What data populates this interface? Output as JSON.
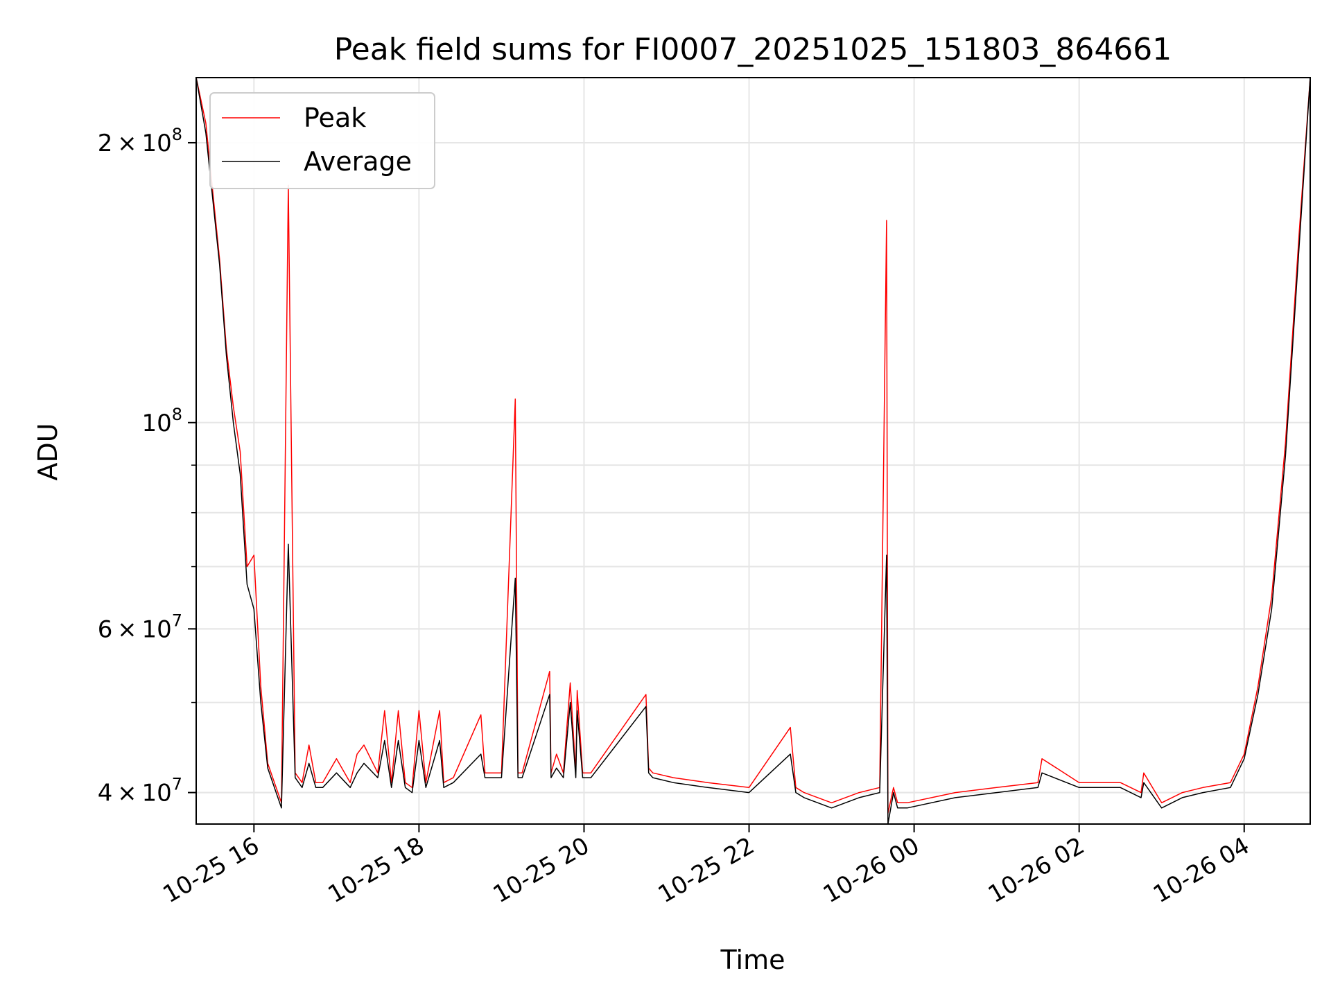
{
  "chart_data": {
    "type": "line",
    "title": "Peak field sums for FI0007_20251025_151803_864661",
    "xlabel": "Time",
    "ylabel": "ADU",
    "yscale": "log",
    "ylim": [
      37000000,
      235000000
    ],
    "xlim": [
      "2025-10-25 15:18",
      "2025-10-26 04:48"
    ],
    "grid": true,
    "legend": "top-left",
    "x_ticks": [
      "10-25 16",
      "10-25 18",
      "10-25 20",
      "10-25 22",
      "10-26 00",
      "10-26 02",
      "10-26 04"
    ],
    "y_ticks": [
      {
        "value": 40000000,
        "mant": "4",
        "exp": "7"
      },
      {
        "value": 60000000,
        "mant": "6",
        "exp": "7"
      },
      {
        "value": 100000000,
        "mant": "",
        "exp": "8"
      },
      {
        "value": 200000000,
        "mant": "2",
        "exp": "8"
      }
    ],
    "series": [
      {
        "name": "Peak",
        "color": "#ff0000",
        "x": [
          "2025-10-25 15:18",
          "2025-10-25 15:25",
          "2025-10-25 15:35",
          "2025-10-25 15:40",
          "2025-10-25 15:45",
          "2025-10-25 15:50",
          "2025-10-25 15:55",
          "2025-10-25 16:00",
          "2025-10-25 16:05",
          "2025-10-25 16:10",
          "2025-10-25 16:20",
          "2025-10-25 16:25",
          "2025-10-25 16:30",
          "2025-10-25 16:35",
          "2025-10-25 16:40",
          "2025-10-25 16:45",
          "2025-10-25 16:50",
          "2025-10-25 17:00",
          "2025-10-25 17:10",
          "2025-10-25 17:15",
          "2025-10-25 17:20",
          "2025-10-25 17:30",
          "2025-10-25 17:35",
          "2025-10-25 17:40",
          "2025-10-25 17:45",
          "2025-10-25 17:50",
          "2025-10-25 17:55",
          "2025-10-25 18:00",
          "2025-10-25 18:05",
          "2025-10-25 18:15",
          "2025-10-25 18:18",
          "2025-10-25 18:25",
          "2025-10-25 18:45",
          "2025-10-25 18:48",
          "2025-10-25 19:00",
          "2025-10-25 19:10",
          "2025-10-25 19:12",
          "2025-10-25 19:15",
          "2025-10-25 19:35",
          "2025-10-25 19:36",
          "2025-10-25 19:40",
          "2025-10-25 19:45",
          "2025-10-25 19:50",
          "2025-10-25 19:54",
          "2025-10-25 19:55",
          "2025-10-25 19:59",
          "2025-10-25 20:05",
          "2025-10-25 20:45",
          "2025-10-25 20:47",
          "2025-10-25 20:50",
          "2025-10-25 21:05",
          "2025-10-25 21:30",
          "2025-10-25 22:00",
          "2025-10-25 22:30",
          "2025-10-25 22:34",
          "2025-10-25 22:40",
          "2025-10-25 23:00",
          "2025-10-25 23:20",
          "2025-10-25 23:35",
          "2025-10-25 23:40",
          "2025-10-25 23:41",
          "2025-10-25 23:45",
          "2025-10-25 23:48",
          "2025-10-25 23:55",
          "2025-10-26 00:30",
          "2025-10-26 01:00",
          "2025-10-26 01:30",
          "2025-10-26 01:33",
          "2025-10-26 02:00",
          "2025-10-26 02:30",
          "2025-10-26 02:45",
          "2025-10-26 02:47",
          "2025-10-26 03:00",
          "2025-10-26 03:15",
          "2025-10-26 03:30",
          "2025-10-26 03:50",
          "2025-10-26 04:00",
          "2025-10-26 04:10",
          "2025-10-26 04:20",
          "2025-10-26 04:30",
          "2025-10-26 04:40",
          "2025-10-26 04:48"
        ],
        "y": [
          235000000,
          210000000,
          150000000,
          120000000,
          104000000,
          93000000,
          70000000,
          72000000,
          52000000,
          43000000,
          39000000,
          180000000,
          42000000,
          41000000,
          45000000,
          41000000,
          41000000,
          43500000,
          41000000,
          44000000,
          45000000,
          42000000,
          49000000,
          41000000,
          49000000,
          41000000,
          40500000,
          49000000,
          41000000,
          49000000,
          41000000,
          41500000,
          48500000,
          42000000,
          42000000,
          106000000,
          42000000,
          42000000,
          54000000,
          42000000,
          44000000,
          42000000,
          52500000,
          42000000,
          51500000,
          42000000,
          42000000,
          51000000,
          42500000,
          42000000,
          41500000,
          41000000,
          40500000,
          47000000,
          40500000,
          40000000,
          39000000,
          40000000,
          40500000,
          165000000,
          38000000,
          40500000,
          39000000,
          39000000,
          40000000,
          40500000,
          41000000,
          43500000,
          41000000,
          41000000,
          40000000,
          42000000,
          39000000,
          40000000,
          40500000,
          41000000,
          44000000,
          52000000,
          65000000,
          95000000,
          160000000,
          235000000
        ]
      },
      {
        "name": "Average",
        "color": "#000000",
        "x": [
          "2025-10-25 15:18",
          "2025-10-25 15:25",
          "2025-10-25 15:35",
          "2025-10-25 15:40",
          "2025-10-25 15:45",
          "2025-10-25 15:50",
          "2025-10-25 15:55",
          "2025-10-25 16:00",
          "2025-10-25 16:05",
          "2025-10-25 16:10",
          "2025-10-25 16:20",
          "2025-10-25 16:25",
          "2025-10-25 16:30",
          "2025-10-25 16:35",
          "2025-10-25 16:40",
          "2025-10-25 16:45",
          "2025-10-25 16:50",
          "2025-10-25 17:00",
          "2025-10-25 17:10",
          "2025-10-25 17:15",
          "2025-10-25 17:20",
          "2025-10-25 17:30",
          "2025-10-25 17:35",
          "2025-10-25 17:40",
          "2025-10-25 17:45",
          "2025-10-25 17:50",
          "2025-10-25 17:55",
          "2025-10-25 18:00",
          "2025-10-25 18:05",
          "2025-10-25 18:15",
          "2025-10-25 18:18",
          "2025-10-25 18:25",
          "2025-10-25 18:45",
          "2025-10-25 18:48",
          "2025-10-25 19:00",
          "2025-10-25 19:10",
          "2025-10-25 19:12",
          "2025-10-25 19:15",
          "2025-10-25 19:35",
          "2025-10-25 19:36",
          "2025-10-25 19:40",
          "2025-10-25 19:45",
          "2025-10-25 19:50",
          "2025-10-25 19:54",
          "2025-10-25 19:55",
          "2025-10-25 19:59",
          "2025-10-25 20:05",
          "2025-10-25 20:45",
          "2025-10-25 20:47",
          "2025-10-25 20:50",
          "2025-10-25 21:05",
          "2025-10-25 21:30",
          "2025-10-25 22:00",
          "2025-10-25 22:30",
          "2025-10-25 22:34",
          "2025-10-25 22:40",
          "2025-10-25 23:00",
          "2025-10-25 23:20",
          "2025-10-25 23:35",
          "2025-10-25 23:40",
          "2025-10-25 23:41",
          "2025-10-25 23:45",
          "2025-10-25 23:48",
          "2025-10-25 23:55",
          "2025-10-26 00:30",
          "2025-10-26 01:00",
          "2025-10-26 01:30",
          "2025-10-26 01:33",
          "2025-10-26 02:00",
          "2025-10-26 02:30",
          "2025-10-26 02:45",
          "2025-10-26 02:47",
          "2025-10-26 03:00",
          "2025-10-26 03:15",
          "2025-10-26 03:30",
          "2025-10-26 03:50",
          "2025-10-26 04:00",
          "2025-10-26 04:10",
          "2025-10-26 04:20",
          "2025-10-26 04:30",
          "2025-10-26 04:40",
          "2025-10-26 04:48"
        ],
        "y": [
          235000000,
          205000000,
          148000000,
          118000000,
          100000000,
          88000000,
          67000000,
          63000000,
          50000000,
          42500000,
          38500000,
          74000000,
          41500000,
          40500000,
          43000000,
          40500000,
          40500000,
          42000000,
          40500000,
          42000000,
          43000000,
          41500000,
          45500000,
          40500000,
          45500000,
          40500000,
          40000000,
          45500000,
          40500000,
          45500000,
          40500000,
          41000000,
          44000000,
          41500000,
          41500000,
          68000000,
          41500000,
          41500000,
          51000000,
          41500000,
          42500000,
          41500000,
          50000000,
          41500000,
          49000000,
          41500000,
          41500000,
          49500000,
          42000000,
          41500000,
          41000000,
          40500000,
          40000000,
          44000000,
          40000000,
          39500000,
          38500000,
          39500000,
          40000000,
          72000000,
          37000000,
          40000000,
          38500000,
          38500000,
          39500000,
          40000000,
          40500000,
          42000000,
          40500000,
          40500000,
          39500000,
          41000000,
          38500000,
          39500000,
          40000000,
          40500000,
          43500000,
          51000000,
          63000000,
          92000000,
          155000000,
          235000000
        ]
      }
    ]
  }
}
